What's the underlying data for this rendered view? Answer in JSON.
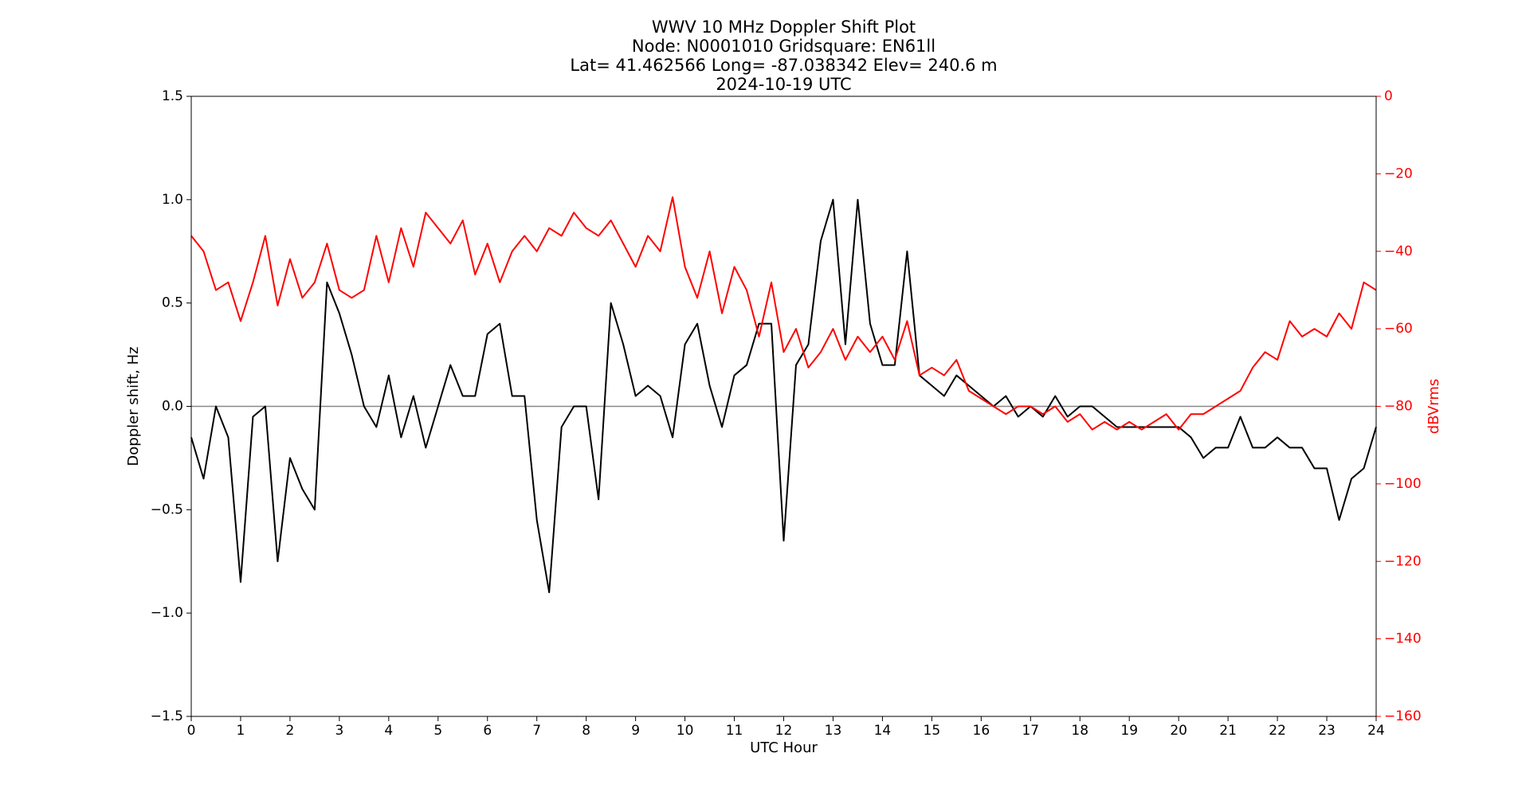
{
  "chart_data": {
    "type": "line",
    "title": [
      "WWV 10 MHz Doppler Shift Plot",
      "Node:  N0001010     Gridsquare:  EN61ll",
      "Lat= 41.462566    Long= -87.038342    Elev= 240.6 m",
      "2024-10-19  UTC"
    ],
    "xlabel": "UTC Hour",
    "ylabel": "Doppler shift, Hz",
    "y2label": "dBVrms",
    "y2color": "#ff0000",
    "xlim": [
      0,
      24
    ],
    "xticks": [
      0,
      1,
      2,
      3,
      4,
      5,
      6,
      7,
      8,
      9,
      10,
      11,
      12,
      13,
      14,
      15,
      16,
      17,
      18,
      19,
      20,
      21,
      22,
      23,
      24
    ],
    "ylim": [
      -1.5,
      1.5
    ],
    "yticks": [
      {
        "value": -1.5,
        "label": "−1.5"
      },
      {
        "value": -1.0,
        "label": "−1.0"
      },
      {
        "value": -0.5,
        "label": "−0.5"
      },
      {
        "value": 0,
        "label": "0.0"
      },
      0.5,
      {
        "value": 1,
        "label": "1.0"
      },
      1.5
    ],
    "y2lim": [
      -160,
      0
    ],
    "y2ticks": [
      {
        "value": -160,
        "label": "−160"
      },
      {
        "value": -140,
        "label": "−140"
      },
      {
        "value": -120,
        "label": "−120"
      },
      {
        "value": -100,
        "label": "−100"
      },
      {
        "value": -80,
        "label": "−80"
      },
      {
        "value": -60,
        "label": "−60"
      },
      {
        "value": -40,
        "label": "−40"
      },
      {
        "value": -20,
        "label": "−20"
      },
      0
    ],
    "hlines": [
      0
    ],
    "x": [
      0,
      0.25,
      0.5,
      0.75,
      1,
      1.25,
      1.5,
      1.75,
      2,
      2.25,
      2.5,
      2.75,
      3,
      3.25,
      3.5,
      3.75,
      4,
      4.25,
      4.5,
      4.75,
      5,
      5.25,
      5.5,
      5.75,
      6,
      6.25,
      6.5,
      6.75,
      7,
      7.25,
      7.5,
      7.75,
      8,
      8.25,
      8.5,
      8.75,
      9,
      9.25,
      9.5,
      9.75,
      10,
      10.25,
      10.5,
      10.75,
      11,
      11.25,
      11.5,
      11.75,
      12,
      12.25,
      12.5,
      12.75,
      13,
      13.25,
      13.5,
      13.75,
      14,
      14.25,
      14.5,
      14.75,
      15,
      15.25,
      15.5,
      15.75,
      16,
      16.25,
      16.5,
      16.75,
      17,
      17.25,
      17.5,
      17.75,
      18,
      18.25,
      18.5,
      18.75,
      19,
      19.25,
      19.5,
      19.75,
      20,
      20.25,
      20.5,
      20.75,
      21,
      21.25,
      21.5,
      21.75,
      22,
      22.25,
      22.5,
      22.75,
      23,
      23.25,
      23.5,
      23.75,
      24
    ],
    "series": [
      {
        "color": "#000000",
        "values": [
          -0.15,
          -0.35,
          0.0,
          -0.15,
          -0.85,
          -0.05,
          0.0,
          -0.75,
          -0.25,
          -0.4,
          -0.5,
          0.6,
          0.45,
          0.25,
          0.0,
          -0.1,
          0.15,
          -0.15,
          0.05,
          -0.2,
          0.0,
          0.2,
          0.05,
          0.05,
          0.35,
          0.4,
          0.05,
          0.05,
          -0.55,
          -0.9,
          -0.1,
          0.0,
          0.0,
          -0.45,
          0.5,
          0.3,
          0.05,
          0.1,
          0.05,
          -0.15,
          0.3,
          0.4,
          0.1,
          -0.1,
          0.15,
          0.2,
          0.4,
          0.4,
          -0.65,
          0.2,
          0.3,
          0.8,
          1.0,
          0.3,
          1.0,
          0.4,
          0.2,
          0.2,
          0.75,
          0.15,
          0.1,
          0.05,
          0.15,
          0.1,
          0.05,
          0.0,
          0.05,
          -0.05,
          0.0,
          -0.05,
          0.05,
          -0.05,
          0.0,
          0.0,
          -0.05,
          -0.1,
          -0.1,
          -0.1,
          -0.1,
          -0.1,
          -0.1,
          -0.15,
          -0.25,
          -0.2,
          -0.2,
          -0.05,
          -0.2,
          -0.2,
          -0.15,
          -0.2,
          -0.2,
          -0.3,
          -0.3,
          -0.55,
          -0.35,
          -0.3,
          -0.1
        ]
      },
      {
        "color": "#ff0000",
        "axis": "y2",
        "values": [
          -36,
          -40,
          -50,
          -48,
          -58,
          -48,
          -36,
          -54,
          -42,
          -52,
          -48,
          -38,
          -50,
          -52,
          -50,
          -36,
          -48,
          -34,
          -44,
          -30,
          -34,
          -38,
          -32,
          -46,
          -38,
          -48,
          -40,
          -36,
          -40,
          -34,
          -36,
          -30,
          -34,
          -36,
          -32,
          -38,
          -44,
          -36,
          -40,
          -26,
          -44,
          -52,
          -40,
          -56,
          -44,
          -50,
          -62,
          -48,
          -66,
          -60,
          -70,
          -66,
          -60,
          -68,
          -62,
          -66,
          -62,
          -68,
          -58,
          -72,
          -70,
          -72,
          -68,
          -76,
          -78,
          -80,
          -82,
          -80,
          -80,
          -82,
          -80,
          -84,
          -82,
          -86,
          -84,
          -86,
          -84,
          -86,
          -84,
          -82,
          -86,
          -82,
          -82,
          -80,
          -78,
          -76,
          -70,
          -66,
          -68,
          -58,
          -62,
          -60,
          -62,
          -56,
          -60,
          -48,
          -50
        ]
      }
    ]
  }
}
